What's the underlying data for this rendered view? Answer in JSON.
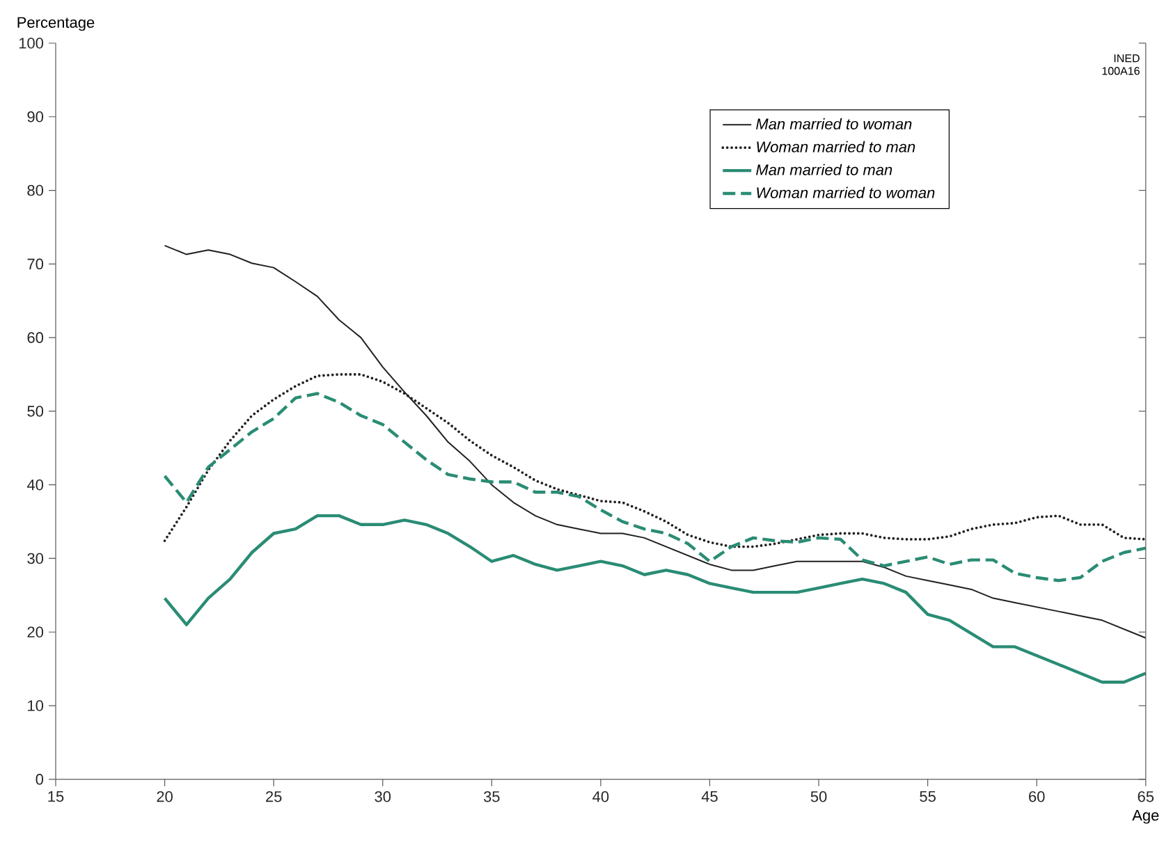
{
  "chart_data": {
    "type": "line",
    "xlabel": "Age",
    "ylabel": "Percentage",
    "x": [
      20,
      21,
      22,
      23,
      24,
      25,
      26,
      27,
      28,
      29,
      30,
      31,
      32,
      33,
      34,
      35,
      36,
      37,
      38,
      39,
      40,
      41,
      42,
      43,
      44,
      45,
      46,
      47,
      48,
      49,
      50,
      51,
      52,
      53,
      54,
      55,
      56,
      57,
      58,
      59,
      60,
      61,
      62,
      63,
      64,
      65
    ],
    "xlim": [
      15,
      65
    ],
    "xticks": [
      15,
      20,
      25,
      30,
      35,
      40,
      45,
      50,
      55,
      60,
      65
    ],
    "ylim": [
      0,
      100
    ],
    "yticks": [
      0,
      10,
      20,
      30,
      40,
      50,
      60,
      70,
      80,
      90,
      100
    ],
    "grid": false,
    "legend": "top right",
    "marker": "none",
    "annotations": [
      "INED",
      "100A16"
    ],
    "series": [
      {
        "name": "Man married to woman",
        "color": "#231f20",
        "line_style": "solid",
        "values": [
          72.5,
          71.3,
          71.9,
          71.3,
          70.1,
          69.5,
          67.6,
          65.6,
          62.4,
          60,
          56,
          52.6,
          49.4,
          45.8,
          43.2,
          40,
          37.6,
          35.8,
          34.6,
          34,
          33.4,
          33.4,
          32.8,
          31.6,
          30.4,
          29.2,
          28.4,
          28.4,
          29,
          29.6,
          29.6,
          29.6,
          29.6,
          28.8,
          27.6,
          27,
          26.4,
          25.8,
          24.6,
          24,
          23.4,
          22.8,
          22.2,
          21.6,
          20.4,
          19.2
        ]
      },
      {
        "name": "Woman married to man",
        "color": "#231f20",
        "line_style": "dotted",
        "values": [
          32.4,
          37,
          42,
          46,
          49.4,
          51.6,
          53.4,
          54.8,
          55,
          55,
          54,
          52.4,
          50.4,
          48.4,
          46,
          44,
          42.4,
          40.6,
          39.4,
          38.6,
          37.8,
          37.6,
          36.4,
          35,
          33.2,
          32.2,
          31.6,
          31.6,
          32,
          32.6,
          33.2,
          33.4,
          33.4,
          32.8,
          32.6,
          32.6,
          33,
          34,
          34.6,
          34.8,
          35.6,
          35.8,
          34.6,
          34.6,
          32.8,
          32.6
        ]
      },
      {
        "name": "Man married to man",
        "color": "#2a8c74",
        "line_style": "solid",
        "values": [
          24.6,
          21,
          24.6,
          27.2,
          30.8,
          33.4,
          34,
          35.8,
          35.8,
          34.6,
          34.6,
          35.2,
          34.6,
          33.4,
          31.6,
          29.6,
          30.4,
          29.2,
          28.4,
          29,
          29.6,
          29,
          27.8,
          28.4,
          27.8,
          26.6,
          26,
          25.4,
          25.4,
          25.4,
          26,
          26.6,
          27.2,
          26.6,
          25.4,
          22.4,
          21.6,
          19.8,
          18,
          18,
          16.8,
          15.6,
          14.4,
          13.2,
          13.2,
          14.4
        ]
      },
      {
        "name": "Woman married to woman",
        "color": "#2a8c74",
        "line_style": "dashed",
        "values": [
          41.2,
          37.6,
          42.4,
          44.8,
          47.2,
          49,
          51.8,
          52.4,
          51.2,
          49.4,
          48.2,
          45.8,
          43.4,
          41.4,
          40.8,
          40.4,
          40.4,
          39,
          39,
          38.4,
          36.6,
          35,
          34,
          33.4,
          32,
          29.6,
          31.6,
          32.8,
          32.4,
          32.2,
          32.8,
          32.6,
          29.8,
          29,
          29.6,
          30.2,
          29.2,
          29.8,
          29.8,
          28,
          27.4,
          27,
          27.4,
          29.6,
          30.8,
          31.4
        ]
      }
    ]
  }
}
